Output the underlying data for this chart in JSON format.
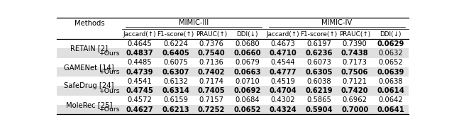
{
  "title_mimic3": "MIMIC-III",
  "title_mimic4": "MIMIC-IV",
  "col_headers": [
    "Jaccard(↑)",
    "F1-score(↑)",
    "PRAUC(↑)",
    "DDI(↓)",
    "Jaccard(↑)",
    "F1-score(↑)",
    "PRAUC(↑)",
    "DDI(↓)"
  ],
  "methods": [
    "RETAIN [2]",
    "GAMENet [14]",
    "SafeDrug [24]",
    "MoleRec [25]"
  ],
  "rows": [
    [
      "0.4645",
      "0.6224",
      "0.7376",
      "0.0680",
      "0.4673",
      "0.6197",
      "0.7390",
      "0.0629"
    ],
    [
      "0.4837",
      "0.6405",
      "0.7540",
      "0.0660",
      "0.4710",
      "0.6236",
      "0.7438",
      "0.0632"
    ],
    [
      "0.4485",
      "0.6075",
      "0.7136",
      "0.0679",
      "0.4544",
      "0.6073",
      "0.7173",
      "0.0652"
    ],
    [
      "0.4739",
      "0.6307",
      "0.7402",
      "0.0663",
      "0.4777",
      "0.6305",
      "0.7506",
      "0.0639"
    ],
    [
      "0.4541",
      "0.6132",
      "0.7174",
      "0.0710",
      "0.4519",
      "0.6038",
      "0.7121",
      "0.0638"
    ],
    [
      "0.4745",
      "0.6314",
      "0.7405",
      "0.0692",
      "0.4704",
      "0.6219",
      "0.7420",
      "0.0614"
    ],
    [
      "0.4572",
      "0.6159",
      "0.7157",
      "0.0684",
      "0.4302",
      "0.5865",
      "0.6962",
      "0.0642"
    ],
    [
      "0.4627",
      "0.6213",
      "0.7252",
      "0.0652",
      "0.4324",
      "0.5904",
      "0.7000",
      "0.0641"
    ]
  ],
  "bold_rows": [
    [
      false,
      false,
      false,
      false,
      false,
      false,
      false,
      true
    ],
    [
      true,
      true,
      true,
      true,
      true,
      true,
      true,
      false
    ],
    [
      false,
      false,
      false,
      false,
      false,
      false,
      false,
      false
    ],
    [
      true,
      true,
      true,
      true,
      true,
      true,
      true,
      true
    ],
    [
      false,
      false,
      false,
      false,
      false,
      false,
      false,
      false
    ],
    [
      true,
      true,
      true,
      true,
      true,
      true,
      true,
      true
    ],
    [
      false,
      false,
      false,
      false,
      false,
      false,
      false,
      false
    ],
    [
      true,
      true,
      true,
      true,
      true,
      true,
      true,
      true
    ]
  ],
  "ours_label": "+Ours",
  "background_color": "#ffffff",
  "ours_bg_color": "#e0e0e0",
  "fontsize": 7.2
}
